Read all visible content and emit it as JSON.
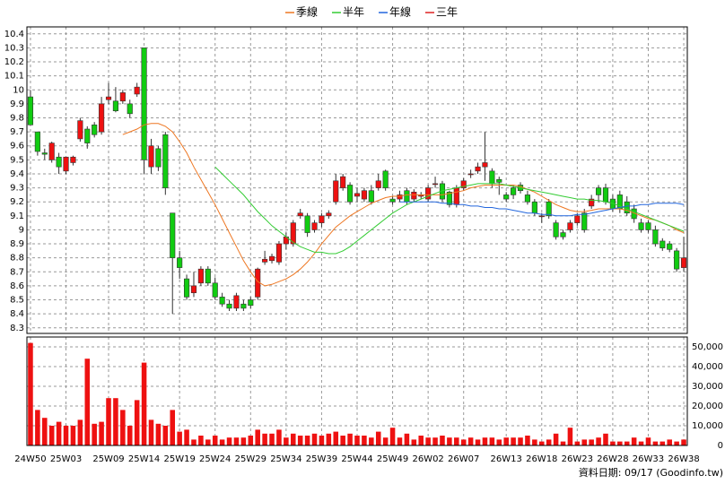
{
  "chart_data": {
    "type": "candlestick",
    "categories": [
      "24W50",
      null,
      null,
      null,
      null,
      "25W03",
      null,
      null,
      null,
      null,
      null,
      "25W09",
      null,
      null,
      null,
      null,
      "25W14",
      null,
      null,
      null,
      null,
      "25W19",
      null,
      null,
      null,
      null,
      "25W24",
      null,
      null,
      null,
      null,
      "25W29",
      null,
      null,
      null,
      null,
      "25W34",
      null,
      null,
      null,
      null,
      "25W39",
      null,
      null,
      null,
      null,
      "25W44",
      null,
      null,
      null,
      null,
      "25W49",
      null,
      null,
      null,
      null,
      "26W02",
      null,
      null,
      null,
      null,
      "26W07",
      null,
      null,
      null,
      null,
      null,
      "26W13",
      null,
      null,
      null,
      null,
      "26W18",
      null,
      null,
      null,
      null,
      "26W23",
      null,
      null,
      null,
      null,
      "26W28",
      null,
      null,
      null,
      null,
      "26W33",
      null,
      null,
      null,
      null,
      "26W38"
    ],
    "open": [
      9.95,
      9.7,
      9.55,
      9.5,
      9.52,
      9.42,
      9.48,
      9.65,
      9.72,
      9.75,
      9.7,
      9.93,
      9.92,
      9.92,
      9.9,
      9.97,
      10.3,
      9.45,
      9.58,
      9.68,
      9.12,
      8.8,
      8.65,
      8.55,
      8.62,
      8.72,
      8.62,
      8.52,
      8.47,
      8.44,
      8.47,
      8.5,
      8.52,
      8.77,
      8.78,
      8.77,
      8.9,
      8.9,
      9.1,
      9.1,
      9.0,
      9.05,
      9.1,
      9.2,
      9.3,
      9.32,
      9.24,
      9.22,
      9.28,
      9.3,
      9.42,
      9.22,
      9.22,
      9.28,
      9.22,
      9.24,
      9.22,
      9.33,
      9.33,
      9.27,
      9.18,
      9.3,
      9.4,
      9.42,
      9.45,
      9.42,
      9.36,
      9.25,
      9.3,
      9.32,
      9.25,
      9.2,
      9.1,
      9.2,
      9.05,
      8.98,
      9.0,
      9.05,
      9.12,
      9.17,
      9.3,
      9.3,
      9.22,
      9.25,
      9.2,
      9.15,
      9.05,
      9.05,
      9.0,
      8.92,
      8.9,
      8.85,
      8.73
    ],
    "high": [
      10.0,
      9.7,
      9.58,
      9.63,
      9.55,
      9.52,
      9.53,
      9.8,
      9.74,
      9.77,
      9.95,
      10.05,
      10.02,
      10.0,
      9.93,
      10.05,
      10.3,
      9.65,
      9.6,
      9.7,
      9.12,
      8.85,
      8.68,
      8.7,
      8.74,
      8.74,
      8.66,
      8.55,
      8.5,
      8.55,
      8.5,
      8.52,
      8.73,
      8.85,
      8.83,
      8.92,
      8.98,
      9.07,
      9.15,
      9.12,
      9.07,
      9.12,
      9.14,
      9.4,
      9.4,
      9.34,
      9.3,
      9.3,
      9.32,
      9.4,
      9.43,
      9.24,
      9.28,
      9.3,
      9.29,
      9.27,
      9.32,
      9.38,
      9.35,
      9.28,
      9.32,
      9.37,
      9.43,
      9.48,
      9.7,
      9.44,
      9.38,
      9.27,
      9.32,
      9.34,
      9.28,
      9.22,
      9.12,
      9.22,
      9.07,
      9.0,
      9.07,
      9.12,
      9.15,
      9.25,
      9.32,
      9.33,
      9.25,
      9.28,
      9.24,
      9.18,
      9.08,
      9.07,
      9.03,
      8.94,
      8.92,
      8.87,
      8.95
    ],
    "low": [
      9.75,
      9.53,
      9.5,
      9.48,
      9.4,
      9.4,
      9.46,
      9.63,
      9.58,
      9.66,
      9.68,
      9.9,
      9.84,
      9.9,
      9.8,
      9.95,
      9.4,
      9.4,
      9.42,
      9.25,
      8.4,
      8.65,
      8.5,
      8.52,
      8.6,
      8.6,
      8.5,
      8.45,
      8.42,
      8.42,
      8.42,
      8.44,
      8.5,
      8.75,
      8.76,
      8.75,
      8.86,
      8.88,
      9.08,
      8.95,
      8.98,
      9.02,
      9.08,
      9.18,
      9.28,
      9.18,
      9.2,
      9.2,
      9.18,
      9.28,
      9.28,
      9.18,
      9.2,
      9.18,
      9.2,
      9.22,
      9.2,
      9.3,
      9.2,
      9.16,
      9.16,
      9.28,
      9.37,
      9.4,
      9.35,
      9.3,
      9.25,
      9.2,
      9.22,
      9.26,
      9.18,
      9.1,
      9.05,
      9.08,
      8.93,
      8.93,
      8.98,
      9.03,
      8.98,
      9.15,
      9.2,
      9.18,
      9.13,
      9.12,
      9.1,
      9.05,
      8.98,
      8.98,
      8.88,
      8.85,
      8.84,
      8.7,
      8.7
    ],
    "close": [
      9.75,
      9.56,
      9.54,
      9.62,
      9.45,
      9.52,
      9.52,
      9.78,
      9.62,
      9.68,
      9.9,
      9.95,
      9.85,
      9.98,
      9.83,
      10.02,
      9.5,
      9.6,
      9.45,
      9.3,
      8.8,
      8.73,
      8.52,
      8.6,
      8.72,
      8.62,
      8.52,
      8.47,
      8.44,
      8.53,
      8.44,
      8.46,
      8.72,
      8.79,
      8.81,
      8.9,
      8.95,
      9.05,
      9.12,
      8.98,
      9.05,
      9.1,
      9.12,
      9.35,
      9.38,
      9.2,
      9.26,
      9.28,
      9.2,
      9.35,
      9.3,
      9.2,
      9.25,
      9.2,
      9.27,
      9.25,
      9.3,
      9.33,
      9.22,
      9.18,
      9.3,
      9.35,
      9.4,
      9.45,
      9.48,
      9.33,
      9.34,
      9.22,
      9.25,
      9.28,
      9.2,
      9.12,
      9.1,
      9.1,
      8.95,
      8.95,
      9.05,
      9.1,
      9.0,
      9.22,
      9.25,
      9.2,
      9.15,
      9.15,
      9.12,
      9.08,
      9.0,
      9.0,
      8.9,
      8.87,
      8.86,
      8.72,
      8.8
    ],
    "up_color": "#ee1111",
    "down_color": "#11cc11",
    "ylim": [
      8.26,
      10.45
    ],
    "yticks": [
      8.3,
      8.4,
      8.5,
      8.6,
      8.7,
      8.8,
      8.9,
      9,
      9.1,
      9.2,
      9.3,
      9.4,
      9.5,
      9.6,
      9.7,
      9.8,
      9.9,
      10,
      10.1,
      10.2,
      10.3,
      10.4
    ],
    "grid": true,
    "legend": "top",
    "series": [
      {
        "name": "季線",
        "color": "#ee7722",
        "values": [
          null,
          null,
          null,
          null,
          null,
          null,
          null,
          null,
          null,
          null,
          null,
          null,
          null,
          9.68,
          9.7,
          9.72,
          9.75,
          9.76,
          9.76,
          9.74,
          9.7,
          9.63,
          9.55,
          9.45,
          9.36,
          9.27,
          9.18,
          9.08,
          8.98,
          8.88,
          8.78,
          8.7,
          8.63,
          8.6,
          8.61,
          8.63,
          8.65,
          8.68,
          8.72,
          8.77,
          8.83,
          8.9,
          8.96,
          9.02,
          9.06,
          9.1,
          9.13,
          9.16,
          9.19,
          9.21,
          9.23,
          9.24,
          9.24,
          9.25,
          9.25,
          9.25,
          9.25,
          9.25,
          9.25,
          9.26,
          9.27,
          9.28,
          9.3,
          9.31,
          9.32,
          9.32,
          9.32,
          9.32,
          9.32,
          9.31,
          9.29,
          9.27,
          9.24,
          9.21,
          9.18,
          9.16,
          9.14,
          9.13,
          9.13,
          9.14,
          9.15,
          9.15,
          9.15,
          9.15,
          9.14,
          9.12,
          9.1,
          9.08,
          9.07,
          9.05,
          9.03,
          9.0,
          8.98
        ]
      },
      {
        "name": "半年",
        "color": "#33cc33",
        "values": [
          null,
          null,
          null,
          null,
          null,
          null,
          null,
          null,
          null,
          null,
          null,
          null,
          null,
          null,
          null,
          null,
          null,
          null,
          null,
          null,
          null,
          null,
          null,
          null,
          null,
          null,
          9.45,
          9.4,
          9.35,
          9.3,
          9.25,
          9.19,
          9.13,
          9.08,
          9.03,
          8.99,
          8.95,
          8.91,
          8.88,
          8.86,
          8.84,
          8.84,
          8.83,
          8.83,
          8.85,
          8.88,
          8.92,
          8.96,
          9.0,
          9.04,
          9.08,
          9.12,
          9.15,
          9.18,
          9.2,
          9.22,
          9.24,
          9.26,
          9.28,
          9.29,
          9.3,
          9.31,
          9.32,
          9.33,
          9.33,
          9.33,
          9.33,
          9.32,
          9.31,
          9.3,
          9.29,
          9.28,
          9.27,
          9.26,
          9.25,
          9.24,
          9.23,
          9.22,
          9.22,
          9.21,
          9.21,
          9.2,
          9.19,
          9.17,
          9.15,
          9.13,
          9.11,
          9.09,
          9.07,
          9.05,
          9.03,
          9.01,
          8.99
        ]
      },
      {
        "name": "年線",
        "color": "#2266dd",
        "values": [
          null,
          null,
          null,
          null,
          null,
          null,
          null,
          null,
          null,
          null,
          null,
          null,
          null,
          null,
          null,
          null,
          null,
          null,
          null,
          null,
          null,
          null,
          null,
          null,
          null,
          null,
          null,
          null,
          null,
          null,
          null,
          null,
          null,
          null,
          null,
          null,
          null,
          null,
          null,
          null,
          null,
          null,
          null,
          null,
          null,
          null,
          null,
          null,
          null,
          null,
          null,
          null,
          9.2,
          9.2,
          9.2,
          9.2,
          9.2,
          9.2,
          9.19,
          9.19,
          9.18,
          9.18,
          9.17,
          9.17,
          9.16,
          9.16,
          9.15,
          9.15,
          9.14,
          9.13,
          9.12,
          9.12,
          9.11,
          9.11,
          9.1,
          9.1,
          9.1,
          9.11,
          9.11,
          9.12,
          9.13,
          9.14,
          9.15,
          9.16,
          9.17,
          9.17,
          9.18,
          9.18,
          9.19,
          9.19,
          9.19,
          9.19,
          9.18
        ]
      },
      {
        "name": "三年",
        "color": "#dd2222",
        "values": [
          null,
          null,
          null,
          null,
          null,
          null,
          null,
          null,
          null,
          null,
          null,
          null,
          null,
          null,
          null,
          null,
          null,
          null,
          null,
          null,
          null,
          null,
          null,
          null,
          null,
          null,
          null,
          null,
          null,
          null,
          null,
          null,
          null,
          null,
          null,
          null,
          null,
          null,
          null,
          null,
          null,
          null,
          null,
          null,
          null,
          null,
          null,
          null,
          null,
          null,
          null,
          null,
          null,
          null,
          null,
          null,
          null,
          null,
          null,
          null,
          null,
          null,
          null,
          null,
          null,
          null,
          null,
          null,
          null,
          null,
          null,
          null,
          null,
          null,
          null,
          null,
          null,
          null,
          null,
          null,
          null,
          null,
          null,
          null,
          null,
          null,
          null,
          null,
          null,
          null,
          null,
          null,
          null
        ]
      }
    ],
    "volume": [
      52000,
      18000,
      14000,
      10000,
      12000,
      10000,
      10000,
      13000,
      44000,
      11000,
      12000,
      24000,
      24000,
      18000,
      10000,
      23000,
      42000,
      13000,
      11000,
      10000,
      18000,
      7000,
      8000,
      3000,
      5000,
      3000,
      5000,
      3000,
      4000,
      4000,
      4000,
      5000,
      8000,
      6000,
      6000,
      8000,
      4000,
      6000,
      5000,
      5000,
      6000,
      5000,
      6000,
      7000,
      5000,
      6000,
      5000,
      5000,
      4000,
      7000,
      4000,
      9000,
      4000,
      6000,
      3000,
      5000,
      4000,
      4000,
      5000,
      4000,
      4000,
      3000,
      4000,
      3000,
      4000,
      4000,
      3000,
      4000,
      4000,
      4000,
      5000,
      3000,
      2000,
      3000,
      6000,
      2000,
      9000,
      2000,
      3000,
      3000,
      4000,
      6000,
      2000,
      2000,
      2000,
      4000,
      2000,
      4000,
      2000,
      2000,
      3000,
      2000,
      3000
    ],
    "volume_color": "#ee1111",
    "y2lim": [
      0,
      55000
    ],
    "y2ticks": [
      0,
      {
        "value": 10000,
        "label": "10,000"
      },
      {
        "value": 20000,
        "label": "20,000"
      },
      {
        "value": 30000,
        "label": "30,000"
      },
      {
        "value": 40000,
        "label": "40,000"
      },
      {
        "value": 50000,
        "label": "50,000"
      }
    ]
  },
  "footer": "資料日期: 09/17  (Goodinfo.tw)"
}
